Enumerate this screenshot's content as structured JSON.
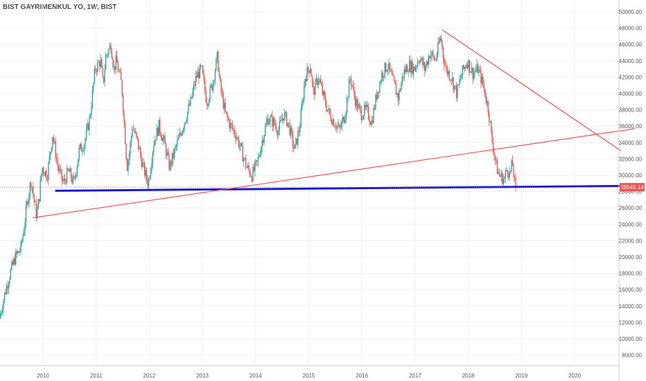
{
  "chart_title": "BIST GAYRIMENKUL YO, 1W, BIST",
  "chart_data": {
    "type": "candlestick",
    "symbol": "BIST GAYRIMENKUL YO",
    "interval": "1W",
    "exchange": "BIST",
    "x_range": [
      2009.2,
      2020.5
    ],
    "ylim": [
      6200,
      51000
    ],
    "x_ticks": [
      {
        "value": 2010,
        "label": "2010"
      },
      {
        "value": 2011,
        "label": "2011"
      },
      {
        "value": 2012,
        "label": "2012"
      },
      {
        "value": 2013,
        "label": "2013"
      },
      {
        "value": 2014,
        "label": "2014"
      },
      {
        "value": 2015,
        "label": "2015"
      },
      {
        "value": 2016,
        "label": "2016"
      },
      {
        "value": 2017,
        "label": "2017"
      },
      {
        "value": 2018,
        "label": "2018"
      },
      {
        "value": 2019,
        "label": "2019"
      },
      {
        "value": 2020,
        "label": "2020"
      }
    ],
    "y_ticks": [
      {
        "value": 8000,
        "label": "8000.00"
      },
      {
        "value": 10000,
        "label": "10000.00"
      },
      {
        "value": 12000,
        "label": "12000.00"
      },
      {
        "value": 14000,
        "label": "14000.00"
      },
      {
        "value": 16000,
        "label": "16000.00"
      },
      {
        "value": 18000,
        "label": "18000.00"
      },
      {
        "value": 20000,
        "label": "20000.00"
      },
      {
        "value": 22000,
        "label": "22000.00"
      },
      {
        "value": 24000,
        "label": "24000.00"
      },
      {
        "value": 26000,
        "label": "26000.00"
      },
      {
        "value": 28000,
        "label": "28000.00"
      },
      {
        "value": 30000,
        "label": "30000.00"
      },
      {
        "value": 32000,
        "label": "32000.00"
      },
      {
        "value": 34000,
        "label": "34000.00"
      },
      {
        "value": 36000,
        "label": "36000.00"
      },
      {
        "value": 38000,
        "label": "38000.00"
      },
      {
        "value": 40000,
        "label": "40000.00"
      },
      {
        "value": 42000,
        "label": "42000.00"
      },
      {
        "value": 44000,
        "label": "44000.00"
      },
      {
        "value": 46000,
        "label": "46000.00"
      },
      {
        "value": 48000,
        "label": "48000.00"
      },
      {
        "value": 50000,
        "label": "50000.00"
      }
    ],
    "grid": true,
    "last_price": 28545.14,
    "last_price_label": "28545.14",
    "colors": {
      "up": "#26a69a",
      "down": "#ef5350",
      "trendline_red": "#ef5350",
      "support_blue": "#1a1acc",
      "last_price": "#ef5350"
    },
    "price_path": [
      [
        2009.2,
        12500
      ],
      [
        2009.3,
        15500
      ],
      [
        2009.4,
        18000
      ],
      [
        2009.5,
        20000
      ],
      [
        2009.6,
        21000
      ],
      [
        2009.65,
        23000
      ],
      [
        2009.7,
        25500
      ],
      [
        2009.75,
        27800
      ],
      [
        2009.8,
        29400
      ],
      [
        2009.85,
        27000
      ],
      [
        2009.9,
        25000
      ],
      [
        2009.95,
        27500
      ],
      [
        2010.0,
        31000
      ],
      [
        2010.1,
        30000
      ],
      [
        2010.2,
        35000
      ],
      [
        2010.3,
        31000
      ],
      [
        2010.4,
        29000
      ],
      [
        2010.5,
        30500
      ],
      [
        2010.6,
        29000
      ],
      [
        2010.7,
        33000
      ],
      [
        2010.8,
        34000
      ],
      [
        2010.9,
        37000
      ],
      [
        2011.0,
        43000
      ],
      [
        2011.1,
        44000
      ],
      [
        2011.15,
        41000
      ],
      [
        2011.2,
        44500
      ],
      [
        2011.3,
        46000
      ],
      [
        2011.35,
        43000
      ],
      [
        2011.4,
        44000
      ],
      [
        2011.5,
        41000
      ],
      [
        2011.55,
        36000
      ],
      [
        2011.6,
        31000
      ],
      [
        2011.65,
        33000
      ],
      [
        2011.7,
        36000
      ],
      [
        2011.8,
        34000
      ],
      [
        2011.9,
        31000
      ],
      [
        2012.0,
        29000
      ],
      [
        2012.1,
        34000
      ],
      [
        2012.2,
        36000
      ],
      [
        2012.3,
        34000
      ],
      [
        2012.4,
        31000
      ],
      [
        2012.5,
        33000
      ],
      [
        2012.6,
        35000
      ],
      [
        2012.7,
        37000
      ],
      [
        2012.8,
        39000
      ],
      [
        2012.9,
        42000
      ],
      [
        2013.0,
        43000
      ],
      [
        2013.1,
        39000
      ],
      [
        2013.2,
        41000
      ],
      [
        2013.3,
        44500
      ],
      [
        2013.35,
        41000
      ],
      [
        2013.45,
        37500
      ],
      [
        2013.55,
        36000
      ],
      [
        2013.65,
        35000
      ],
      [
        2013.75,
        33000
      ],
      [
        2013.85,
        31000
      ],
      [
        2013.95,
        30000
      ],
      [
        2014.05,
        31500
      ],
      [
        2014.15,
        34500
      ],
      [
        2014.25,
        37000
      ],
      [
        2014.35,
        36500
      ],
      [
        2014.45,
        35500
      ],
      [
        2014.55,
        37500
      ],
      [
        2014.65,
        36000
      ],
      [
        2014.75,
        33000
      ],
      [
        2014.85,
        36000
      ],
      [
        2014.95,
        42000
      ],
      [
        2015.05,
        43500
      ],
      [
        2015.1,
        40000
      ],
      [
        2015.2,
        42000
      ],
      [
        2015.3,
        39500
      ],
      [
        2015.4,
        37500
      ],
      [
        2015.5,
        36500
      ],
      [
        2015.6,
        35500
      ],
      [
        2015.7,
        37500
      ],
      [
        2015.8,
        42000
      ],
      [
        2015.9,
        39000
      ],
      [
        2016.0,
        37500
      ],
      [
        2016.1,
        38000
      ],
      [
        2016.2,
        36500
      ],
      [
        2016.3,
        40000
      ],
      [
        2016.4,
        42500
      ],
      [
        2016.5,
        43500
      ],
      [
        2016.6,
        41500
      ],
      [
        2016.7,
        39500
      ],
      [
        2016.8,
        42500
      ],
      [
        2016.9,
        43500
      ],
      [
        2017.0,
        43000
      ],
      [
        2017.1,
        44500
      ],
      [
        2017.2,
        43000
      ],
      [
        2017.3,
        45000
      ],
      [
        2017.4,
        44000
      ],
      [
        2017.5,
        47000
      ],
      [
        2017.55,
        44500
      ],
      [
        2017.6,
        43000
      ],
      [
        2017.7,
        42000
      ],
      [
        2017.8,
        40000
      ],
      [
        2017.9,
        42500
      ],
      [
        2018.0,
        44000
      ],
      [
        2018.1,
        42500
      ],
      [
        2018.2,
        43000
      ],
      [
        2018.3,
        41000
      ],
      [
        2018.4,
        38000
      ],
      [
        2018.45,
        35000
      ],
      [
        2018.5,
        33000
      ],
      [
        2018.55,
        31000
      ],
      [
        2018.6,
        30000
      ],
      [
        2018.7,
        29500
      ],
      [
        2018.75,
        31000
      ],
      [
        2018.8,
        30000
      ],
      [
        2018.85,
        31500
      ],
      [
        2018.9,
        28545
      ]
    ],
    "drawings": [
      {
        "kind": "support-line",
        "color": "blue",
        "from": [
          2010.23,
          28100
        ],
        "to": [
          2021.04,
          28700
        ]
      },
      {
        "kind": "rising-trendline",
        "color": "red",
        "from": [
          2009.81,
          24800
        ],
        "to": [
          2021.13,
          35700
        ]
      },
      {
        "kind": "falling-trendline",
        "color": "red",
        "from": [
          2017.51,
          47800
        ],
        "to": [
          2020.87,
          33000
        ]
      },
      {
        "kind": "last-price-line",
        "color": "red",
        "value": 28545.14
      }
    ]
  }
}
